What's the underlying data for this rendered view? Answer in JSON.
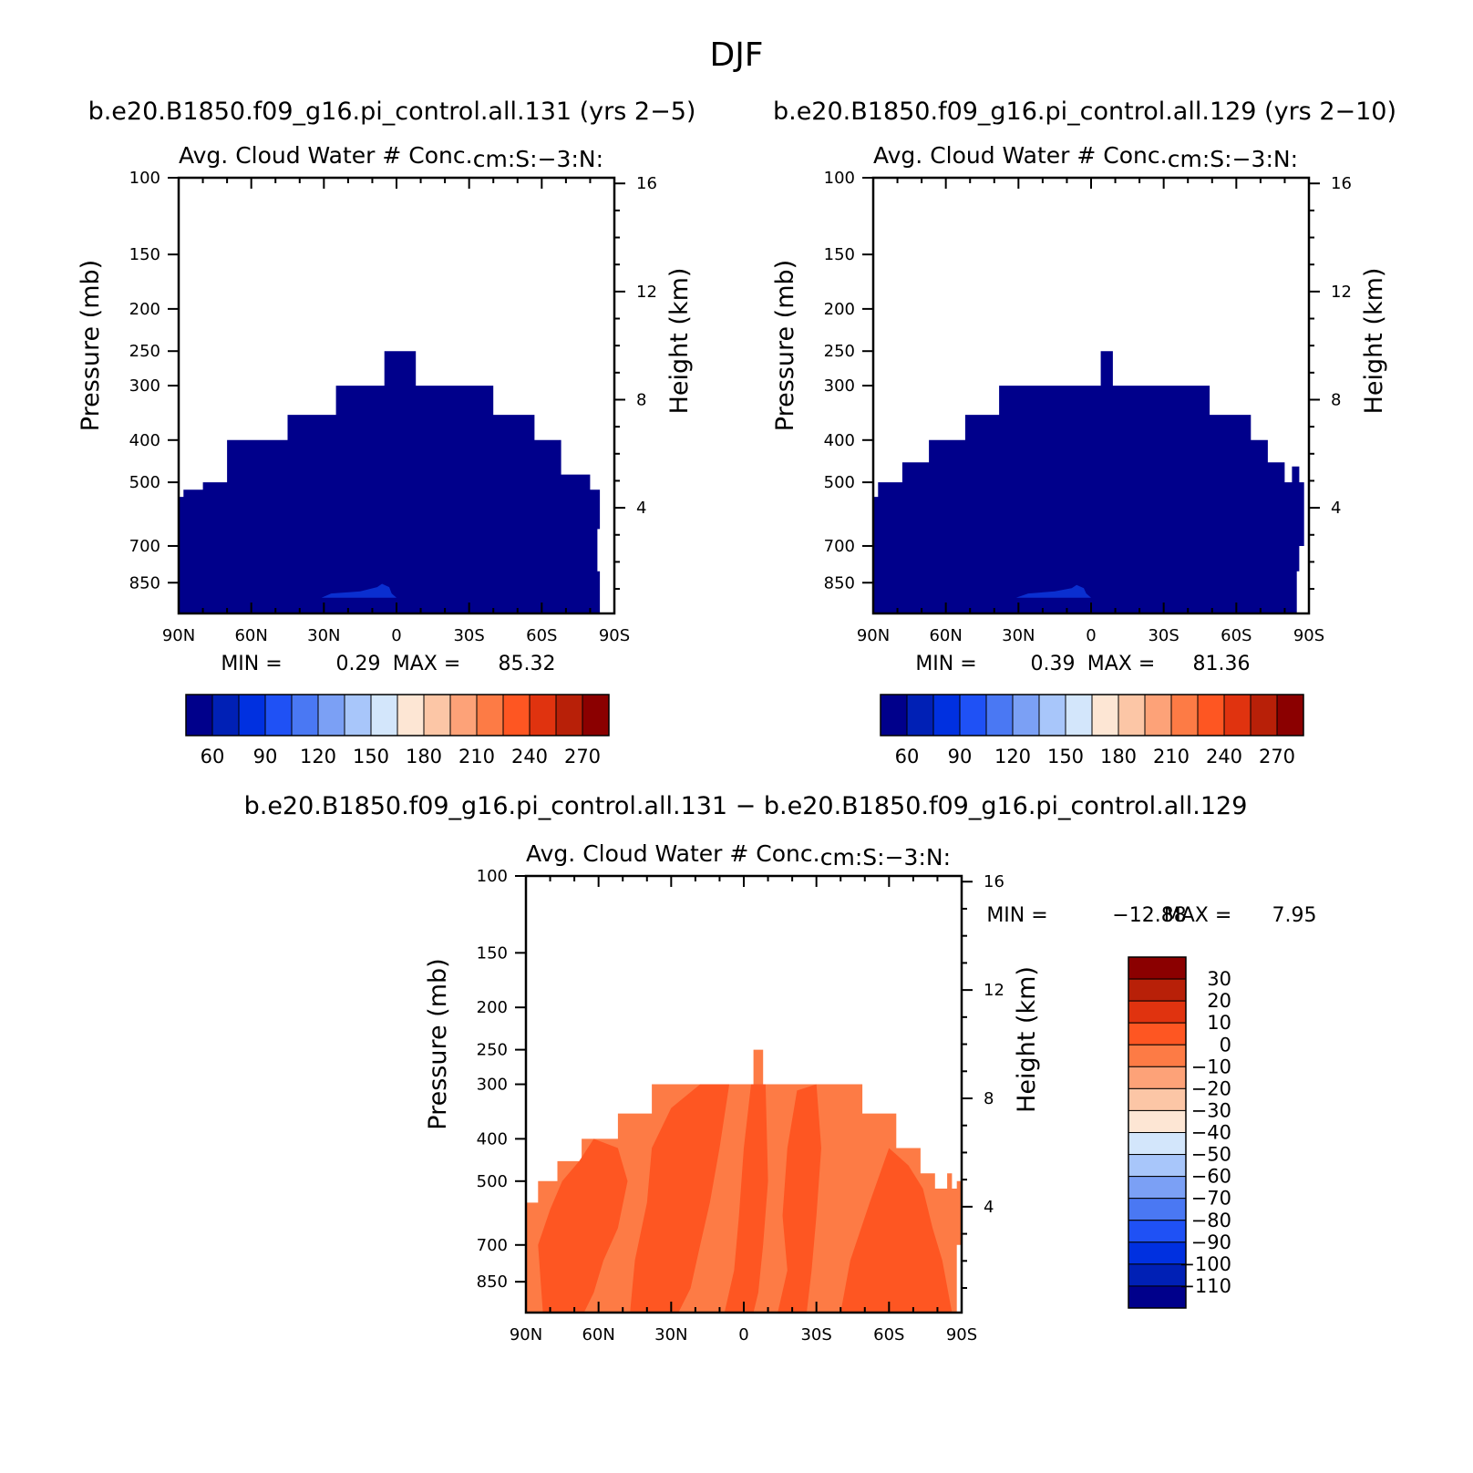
{
  "figure": {
    "title": "DJF",
    "colors": {
      "fill_dark": "#00008b",
      "fill_blue": "#0a2fd0",
      "diff_dark": "#fe5622",
      "diff_light": "#fd7b45"
    }
  },
  "chart_data": [
    {
      "type": "heatmap",
      "case_title": "b.e20.B1850.f09_g16.pi_control.all.131 (yrs 2−5)",
      "title": "Avg. Cloud Water # Conc.",
      "units": "cm:S:−3:N:",
      "ylabel": "Pressure (mb)",
      "y2label": "Height (km)",
      "x_ticks": [
        "90N",
        "60N",
        "30N",
        "0",
        "30S",
        "60S",
        "90S"
      ],
      "x_values": [
        -90,
        -60,
        -30,
        0,
        30,
        60,
        90
      ],
      "y_ticks": [
        "100",
        "150",
        "200",
        "250",
        "300",
        "400",
        "500",
        "700",
        "850"
      ],
      "y_values": [
        100,
        150,
        200,
        250,
        300,
        400,
        500,
        700,
        850
      ],
      "ylim": [
        100,
        1000
      ],
      "y_log_scale": true,
      "y2_ticks": [
        "16",
        "12",
        "8",
        "4"
      ],
      "y2_values": [
        16,
        12,
        8,
        4
      ],
      "min_label": "MIN =",
      "min_value": "0.29",
      "max_label": "MAX =",
      "max_value": "85.32",
      "colorbar": {
        "labels": [
          "60",
          "90",
          "120",
          "150",
          "180",
          "210",
          "240",
          "270"
        ],
        "levels": [
          45,
          60,
          75,
          90,
          105,
          120,
          135,
          150,
          165,
          180,
          195,
          210,
          225,
          240,
          255,
          270,
          285
        ],
        "colors": [
          "#00008b",
          "#0020b5",
          "#0030e0",
          "#1f51f5",
          "#4a78f3",
          "#7ba0f5",
          "#a8c6fa",
          "#d3e6fb",
          "#fde6d4",
          "#fcc6a6",
          "#fda278",
          "#fd7b45",
          "#fe5622",
          "#e0330f",
          "#b82008",
          "#8b0000"
        ]
      },
      "field_extent": [
        [
          -90,
          540
        ],
        [
          -88,
          540
        ],
        [
          -88,
          520
        ],
        [
          -80,
          520
        ],
        [
          -80,
          500
        ],
        [
          -70,
          500
        ],
        [
          -70,
          400
        ],
        [
          -45,
          400
        ],
        [
          -45,
          350
        ],
        [
          -25,
          350
        ],
        [
          -25,
          300
        ],
        [
          -5,
          300
        ],
        [
          -5,
          250
        ],
        [
          8,
          250
        ],
        [
          8,
          300
        ],
        [
          40,
          300
        ],
        [
          40,
          350
        ],
        [
          57,
          350
        ],
        [
          57,
          400
        ],
        [
          68,
          400
        ],
        [
          68,
          480
        ],
        [
          80,
          480
        ],
        [
          80,
          520
        ],
        [
          84,
          520
        ],
        [
          84,
          640
        ],
        [
          83,
          640
        ],
        [
          83,
          800
        ],
        [
          84,
          800
        ],
        [
          84,
          1000
        ],
        [
          -90,
          1000
        ]
      ],
      "region_bluer": [
        [
          -31,
          920
        ],
        [
          -27,
          900
        ],
        [
          -15,
          890
        ],
        [
          -8,
          870
        ],
        [
          -6,
          855
        ],
        [
          -3,
          870
        ],
        [
          -2,
          900
        ],
        [
          0,
          920
        ]
      ]
    },
    {
      "type": "heatmap",
      "case_title": "b.e20.B1850.f09_g16.pi_control.all.129 (yrs 2−10)",
      "title": "Avg. Cloud Water # Conc.",
      "units": "cm:S:−3:N:",
      "ylabel": "Pressure (mb)",
      "y2label": "Height (km)",
      "x_ticks": [
        "90N",
        "60N",
        "30N",
        "0",
        "30S",
        "60S",
        "90S"
      ],
      "x_values": [
        -90,
        -60,
        -30,
        0,
        30,
        60,
        90
      ],
      "y_ticks": [
        "100",
        "150",
        "200",
        "250",
        "300",
        "400",
        "500",
        "700",
        "850"
      ],
      "y_values": [
        100,
        150,
        200,
        250,
        300,
        400,
        500,
        700,
        850
      ],
      "ylim": [
        100,
        1000
      ],
      "y_log_scale": true,
      "y2_ticks": [
        "16",
        "12",
        "8",
        "4"
      ],
      "y2_values": [
        16,
        12,
        8,
        4
      ],
      "min_label": "MIN =",
      "min_value": "0.39",
      "max_label": "MAX =",
      "max_value": "81.36",
      "colorbar": {
        "labels": [
          "60",
          "90",
          "120",
          "150",
          "180",
          "210",
          "240",
          "270"
        ],
        "levels": [
          45,
          60,
          75,
          90,
          105,
          120,
          135,
          150,
          165,
          180,
          195,
          210,
          225,
          240,
          255,
          270,
          285
        ],
        "colors": [
          "#00008b",
          "#0020b5",
          "#0030e0",
          "#1f51f5",
          "#4a78f3",
          "#7ba0f5",
          "#a8c6fa",
          "#d3e6fb",
          "#fde6d4",
          "#fcc6a6",
          "#fda278",
          "#fd7b45",
          "#fe5622",
          "#e0330f",
          "#b82008",
          "#8b0000"
        ]
      },
      "field_extent": [
        [
          -90,
          540
        ],
        [
          -88,
          540
        ],
        [
          -88,
          500
        ],
        [
          -78,
          500
        ],
        [
          -78,
          450
        ],
        [
          -67,
          450
        ],
        [
          -67,
          400
        ],
        [
          -52,
          400
        ],
        [
          -52,
          350
        ],
        [
          -38,
          350
        ],
        [
          -38,
          300
        ],
        [
          4,
          300
        ],
        [
          4,
          250
        ],
        [
          9,
          250
        ],
        [
          9,
          300
        ],
        [
          49,
          300
        ],
        [
          49,
          350
        ],
        [
          66,
          350
        ],
        [
          66,
          400
        ],
        [
          73,
          400
        ],
        [
          73,
          450
        ],
        [
          80,
          450
        ],
        [
          80,
          500
        ],
        [
          83,
          500
        ],
        [
          83,
          460
        ],
        [
          86,
          460
        ],
        [
          86,
          500
        ],
        [
          88,
          500
        ],
        [
          88,
          700
        ],
        [
          86,
          700
        ],
        [
          86,
          800
        ],
        [
          85,
          800
        ],
        [
          85,
          1000
        ],
        [
          -90,
          1000
        ]
      ],
      "region_bluer": [
        [
          -31,
          920
        ],
        [
          -26,
          900
        ],
        [
          -15,
          890
        ],
        [
          -8,
          875
        ],
        [
          -6,
          860
        ],
        [
          -3,
          875
        ],
        [
          -2,
          900
        ],
        [
          0,
          920
        ]
      ]
    },
    {
      "type": "heatmap",
      "case_title": "b.e20.B1850.f09_g16.pi_control.all.131 − b.e20.B1850.f09_g16.pi_control.all.129",
      "title": "Avg. Cloud Water # Conc.",
      "units": "cm:S:−3:N:",
      "ylabel": "Pressure (mb)",
      "y2label": "Height (km)",
      "x_ticks": [
        "90N",
        "60N",
        "30N",
        "0",
        "30S",
        "60S",
        "90S"
      ],
      "x_values": [
        -90,
        -60,
        -30,
        0,
        30,
        60,
        90
      ],
      "y_ticks": [
        "100",
        "150",
        "200",
        "250",
        "300",
        "400",
        "500",
        "700",
        "850"
      ],
      "y_values": [
        100,
        150,
        200,
        250,
        300,
        400,
        500,
        700,
        850
      ],
      "ylim": [
        100,
        1000
      ],
      "y_log_scale": true,
      "y2_ticks": [
        "16",
        "12",
        "8",
        "4"
      ],
      "y2_values": [
        16,
        12,
        8,
        4
      ],
      "min_label": "MIN =",
      "min_value": "−12.88",
      "max_label": "MAX =",
      "max_value": "7.95",
      "colorbar": {
        "labels": [
          "30",
          "20",
          "10",
          "0",
          "−10",
          "−20",
          "−30",
          "−40",
          "−50",
          "−60",
          "−70",
          "−80",
          "−90",
          "−100",
          "−110"
        ],
        "levels": [
          40,
          30,
          20,
          10,
          0,
          -10,
          -20,
          -30,
          -40,
          -50,
          -60,
          -70,
          -80,
          -90,
          -100,
          -110,
          -120
        ],
        "colors": [
          "#8b0000",
          "#b82008",
          "#e0330f",
          "#fe5622",
          "#fd7b45",
          "#fda278",
          "#fcc6a6",
          "#fde6d4",
          "#d3e6fb",
          "#a8c6fa",
          "#7ba0f5",
          "#4a78f3",
          "#1f51f5",
          "#0030e0",
          "#0020b5",
          "#00008b"
        ]
      },
      "field_extent": [
        [
          -90,
          560
        ],
        [
          -85,
          560
        ],
        [
          -85,
          500
        ],
        [
          -77,
          500
        ],
        [
          -77,
          450
        ],
        [
          -67,
          450
        ],
        [
          -67,
          400
        ],
        [
          -52,
          400
        ],
        [
          -52,
          350
        ],
        [
          -38,
          350
        ],
        [
          -38,
          300
        ],
        [
          4,
          300
        ],
        [
          4,
          250
        ],
        [
          8,
          250
        ],
        [
          8,
          300
        ],
        [
          49,
          300
        ],
        [
          49,
          350
        ],
        [
          63,
          350
        ],
        [
          63,
          420
        ],
        [
          73,
          420
        ],
        [
          73,
          480
        ],
        [
          79,
          480
        ],
        [
          79,
          520
        ],
        [
          84,
          520
        ],
        [
          84,
          480
        ],
        [
          86,
          480
        ],
        [
          86,
          520
        ],
        [
          88,
          520
        ],
        [
          88,
          500
        ],
        [
          90,
          500
        ],
        [
          90,
          700
        ],
        [
          88,
          700
        ],
        [
          88,
          1000
        ],
        [
          -90,
          1000
        ]
      ],
      "region_dark": [
        [
          [
            -83,
            1000
          ],
          [
            -85,
            700
          ],
          [
            -80,
            580
          ],
          [
            -75,
            500
          ],
          [
            -68,
            450
          ],
          [
            -62,
            400
          ],
          [
            -52,
            420
          ],
          [
            -48,
            500
          ],
          [
            -52,
            640
          ],
          [
            -58,
            760
          ],
          [
            -62,
            900
          ],
          [
            -66,
            1000
          ]
        ],
        [
          [
            -47,
            1000
          ],
          [
            -45,
            760
          ],
          [
            -40,
            560
          ],
          [
            -38,
            420
          ],
          [
            -30,
            340
          ],
          [
            -18,
            300
          ],
          [
            -6,
            300
          ],
          [
            -10,
            420
          ],
          [
            -14,
            560
          ],
          [
            -18,
            700
          ],
          [
            -22,
            880
          ],
          [
            -27,
            1000
          ]
        ],
        [
          [
            -8,
            1000
          ],
          [
            -4,
            800
          ],
          [
            -2,
            600
          ],
          [
            0,
            420
          ],
          [
            3,
            300
          ],
          [
            9,
            300
          ],
          [
            10,
            500
          ],
          [
            8,
            700
          ],
          [
            6,
            900
          ],
          [
            4,
            1000
          ]
        ],
        [
          [
            14,
            1000
          ],
          [
            18,
            800
          ],
          [
            16,
            600
          ],
          [
            18,
            420
          ],
          [
            22,
            310
          ],
          [
            30,
            300
          ],
          [
            32,
            420
          ],
          [
            30,
            600
          ],
          [
            28,
            800
          ],
          [
            26,
            1000
          ]
        ],
        [
          [
            40,
            1000
          ],
          [
            44,
            760
          ],
          [
            52,
            560
          ],
          [
            60,
            420
          ],
          [
            68,
            460
          ],
          [
            74,
            520
          ],
          [
            78,
            640
          ],
          [
            82,
            760
          ],
          [
            86,
            1000
          ]
        ]
      ]
    }
  ]
}
